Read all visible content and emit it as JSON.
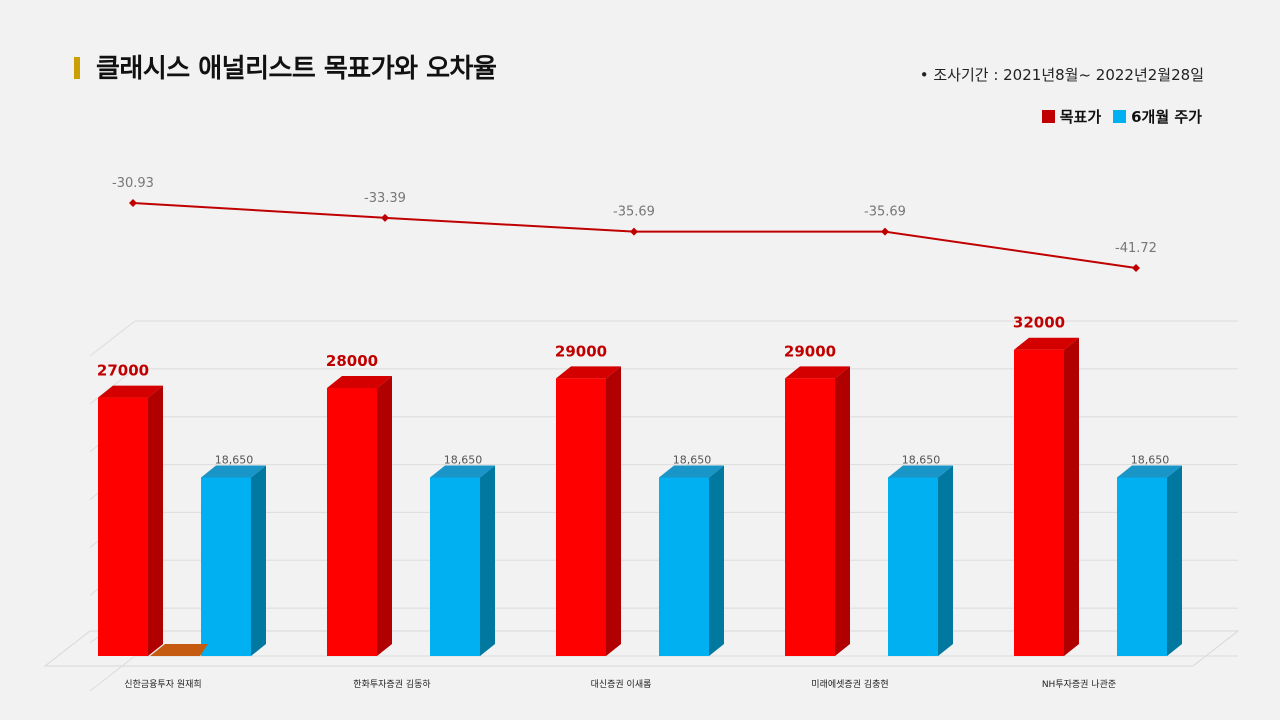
{
  "header": {
    "title": "클래시스 애널리스트 목표가와 오차율",
    "period": "•  조사기간 : 2021년8월~ 2022년2월28일"
  },
  "colors": {
    "target": "#ff0000",
    "target_side": "#b00000",
    "target_top": "#d40000",
    "price": "#00b0f0",
    "price_side": "#0078a0",
    "price_top": "#1a95c8",
    "line": "#c00000",
    "legend_target": "#c00000",
    "legend_price": "#00b0f0",
    "extra": "#c55a11"
  },
  "chart_data": [
    {
      "type": "bar",
      "categories": [
        "신한금융투자 원재희",
        "한화투자증권 김동하",
        "대신증권 이새롬",
        "미래에셋증권 김충현",
        "NH투자증권 나관준"
      ],
      "series": [
        {
          "name": "목표가",
          "values": [
            27000,
            28000,
            29000,
            29000,
            32000
          ],
          "labels": [
            "27000",
            "28000",
            "29000",
            "29000",
            "32000"
          ]
        },
        {
          "name": "6개월 주가",
          "values": [
            18650,
            18650,
            18650,
            18650,
            18650
          ],
          "labels": [
            "18,650",
            "18,650",
            "18,650",
            "18,650",
            "18,650"
          ]
        }
      ],
      "legend": [
        "목표가",
        "6개월 주가"
      ],
      "legend_position": "top-right",
      "ylim": [
        0,
        35000
      ],
      "grid": true
    },
    {
      "type": "line",
      "categories": [
        "신한금융투자 원재희",
        "한화투자증권 김동하",
        "대신증권 이새롬",
        "미래에셋증권 김충현",
        "NH투자증권 나관준"
      ],
      "values": [
        -30.93,
        -33.39,
        -35.69,
        -35.69,
        -41.72
      ],
      "labels": [
        "-30.93",
        "-33.39",
        "-35.69",
        "-35.69",
        "-41.72"
      ]
    }
  ]
}
